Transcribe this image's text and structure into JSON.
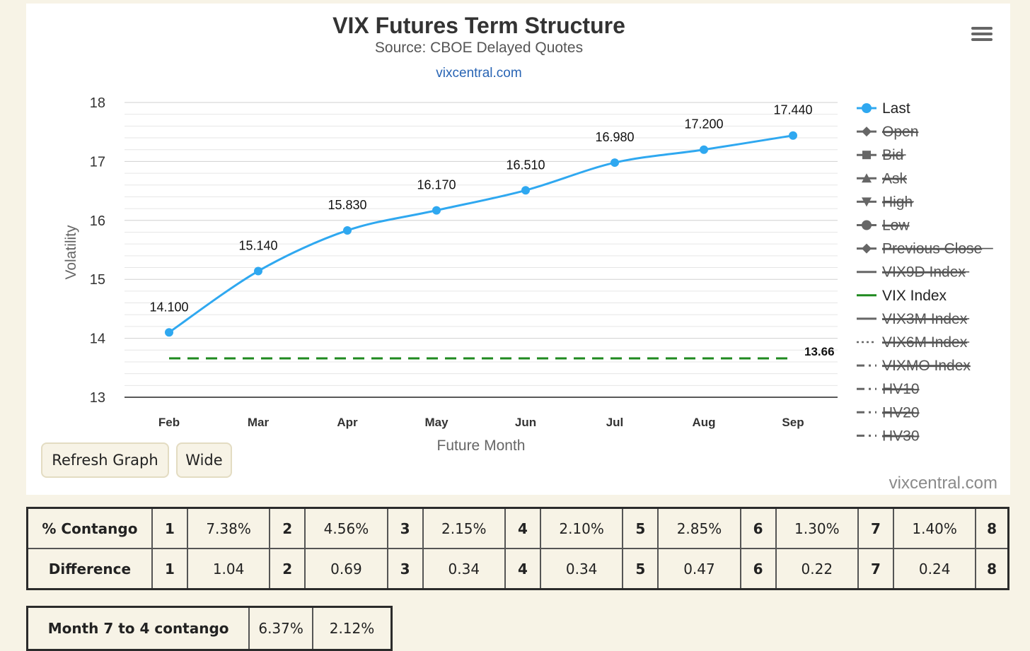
{
  "chart_data": {
    "type": "line",
    "title": "VIX Futures Term Structure",
    "subtitle": "Source: CBOE Delayed Quotes",
    "link_text": "vixcentral.com",
    "watermark": "vixcentral.com",
    "xlabel": "Future Month",
    "ylabel": "Volatility",
    "categories": [
      "Feb",
      "Mar",
      "Apr",
      "May",
      "Jun",
      "Jul",
      "Aug",
      "Sep"
    ],
    "ylim": [
      13,
      18
    ],
    "yticks": [
      13,
      14,
      15,
      16,
      17,
      18
    ],
    "grid": true,
    "legend_position": "right",
    "series": [
      {
        "name": "Last",
        "values": [
          14.1,
          15.14,
          15.83,
          16.17,
          16.51,
          16.98,
          17.2,
          17.44
        ],
        "labels": [
          "14.100",
          "15.140",
          "15.830",
          "16.170",
          "16.510",
          "16.980",
          "17.200",
          "17.440"
        ],
        "color": "#2fa8f0",
        "visible": true
      },
      {
        "name": "VIX Index",
        "values": [
          13.66,
          13.66,
          13.66,
          13.66,
          13.66,
          13.66,
          13.66,
          13.66
        ],
        "end_label": "13.66",
        "color": "#1f8a1f",
        "style": "dashed",
        "visible": true
      }
    ],
    "legend": [
      {
        "name": "Last",
        "marker": "circle",
        "line": "solid",
        "disabled": false
      },
      {
        "name": "Open",
        "marker": "diamond",
        "line": "solid",
        "disabled": true
      },
      {
        "name": "Bid",
        "marker": "square",
        "line": "solid",
        "disabled": true
      },
      {
        "name": "Ask",
        "marker": "triangle",
        "line": "solid",
        "disabled": true
      },
      {
        "name": "High",
        "marker": "triangle-down",
        "line": "solid",
        "disabled": true
      },
      {
        "name": "Low",
        "marker": "circle",
        "line": "solid",
        "disabled": true
      },
      {
        "name": "Previous Close",
        "marker": "diamond",
        "line": "solid",
        "disabled": true
      },
      {
        "name": "VIX9D Index",
        "marker": "none",
        "line": "solid",
        "disabled": true
      },
      {
        "name": "VIX Index",
        "marker": "none",
        "line": "solid",
        "disabled": false
      },
      {
        "name": "VIX3M Index",
        "marker": "none",
        "line": "solid",
        "disabled": true
      },
      {
        "name": "VIX6M Index",
        "marker": "none",
        "line": "dotted",
        "disabled": true
      },
      {
        "name": "VIXMO Index",
        "marker": "none",
        "line": "dashdot",
        "disabled": true
      },
      {
        "name": "HV10",
        "marker": "none",
        "line": "dashdot",
        "disabled": true
      },
      {
        "name": "HV20",
        "marker": "none",
        "line": "dashdot",
        "disabled": true
      },
      {
        "name": "HV30",
        "marker": "none",
        "line": "dashdot",
        "disabled": true
      }
    ],
    "colors": {
      "active": "#2fa8f0",
      "vix": "#1f8a1f",
      "disabled": "#666666",
      "link": "#2864b4"
    }
  },
  "buttons": {
    "refresh": "Refresh Graph",
    "wide": "Wide"
  },
  "contango_table": {
    "rows": [
      {
        "label": "% Contango",
        "cells": [
          "1",
          "7.38%",
          "2",
          "4.56%",
          "3",
          "2.15%",
          "4",
          "2.10%",
          "5",
          "2.85%",
          "6",
          "1.30%",
          "7",
          "1.40%",
          "8"
        ]
      },
      {
        "label": "Difference",
        "cells": [
          "1",
          "1.04",
          "2",
          "0.69",
          "3",
          "0.34",
          "4",
          "0.34",
          "5",
          "0.47",
          "6",
          "0.22",
          "7",
          "0.24",
          "8"
        ]
      }
    ]
  },
  "month7_table": {
    "label": "Month 7 to 4 contango",
    "values": [
      "6.37%",
      "2.12%"
    ]
  }
}
